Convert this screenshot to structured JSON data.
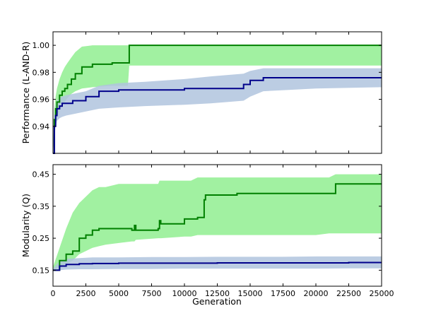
{
  "chart_data": [
    {
      "type": "line",
      "title": "",
      "xlabel": "",
      "ylabel": "Performance (L-AND-R)",
      "xlim": [
        0,
        25000
      ],
      "ylim": [
        0.92,
        1.01
      ],
      "yticks": [
        0.94,
        0.96,
        0.98,
        1.0
      ],
      "ytick_labels": [
        "0.94",
        "0.96",
        "0.98",
        "1.00"
      ],
      "grid": false,
      "legend": "none",
      "series": [
        {
          "color": "#008000",
          "band_color": "#90EE90",
          "x": [
            0,
            100,
            200,
            300,
            500,
            700,
            900,
            1100,
            1400,
            1700,
            2200,
            3000,
            4500,
            5700,
            5800,
            25000
          ],
          "mean": [
            0.92,
            0.945,
            0.953,
            0.958,
            0.963,
            0.966,
            0.968,
            0.971,
            0.975,
            0.979,
            0.984,
            0.986,
            0.987,
            0.987,
            1.0,
            1.0
          ],
          "band_lo": [
            0.92,
            0.935,
            0.942,
            0.947,
            0.952,
            0.955,
            0.958,
            0.961,
            0.964,
            0.966,
            0.968,
            0.969,
            0.97,
            0.97,
            0.985,
            0.985
          ],
          "band_hi": [
            0.92,
            0.953,
            0.962,
            0.968,
            0.975,
            0.98,
            0.984,
            0.987,
            0.991,
            0.995,
            0.999,
            1.0,
            1.0,
            1.0,
            1.0,
            1.0
          ]
        },
        {
          "color": "#00008B",
          "band_color": "#B0C4DE",
          "x": [
            0,
            100,
            200,
            300,
            500,
            700,
            1000,
            1500,
            2500,
            3500,
            5000,
            7000,
            10000,
            12000,
            14500,
            15000,
            16000,
            20000,
            25000
          ],
          "mean": [
            0.92,
            0.94,
            0.948,
            0.953,
            0.955,
            0.957,
            0.957,
            0.959,
            0.962,
            0.966,
            0.967,
            0.967,
            0.968,
            0.968,
            0.971,
            0.974,
            0.976,
            0.976,
            0.976
          ],
          "band_lo": [
            0.92,
            0.932,
            0.94,
            0.944,
            0.946,
            0.947,
            0.948,
            0.949,
            0.951,
            0.953,
            0.954,
            0.955,
            0.956,
            0.957,
            0.959,
            0.962,
            0.966,
            0.968,
            0.969
          ],
          "band_hi": [
            0.92,
            0.948,
            0.955,
            0.959,
            0.961,
            0.962,
            0.963,
            0.964,
            0.966,
            0.97,
            0.972,
            0.973,
            0.975,
            0.977,
            0.979,
            0.981,
            0.983,
            0.983,
            0.983
          ]
        }
      ]
    },
    {
      "type": "line",
      "title": "",
      "xlabel": "Generation",
      "ylabel": "Modularity (Q)",
      "xlim": [
        0,
        25000
      ],
      "ylim": [
        0.1,
        0.48
      ],
      "xticks": [
        0,
        2500,
        5000,
        7500,
        10000,
        12500,
        15000,
        17500,
        20000,
        22500,
        25000
      ],
      "xtick_labels": [
        "0",
        "2500",
        "5000",
        "7500",
        "10000",
        "12500",
        "15000",
        "17500",
        "20000",
        "22500",
        "25000"
      ],
      "yticks": [
        0.15,
        0.25,
        0.35,
        0.45
      ],
      "ytick_labels": [
        "0.15",
        "0.25",
        "0.35",
        "0.45"
      ],
      "grid": false,
      "legend": "none",
      "series": [
        {
          "color": "#008000",
          "band_color": "#90EE90",
          "x": [
            0,
            500,
            1000,
            1500,
            2000,
            2500,
            3000,
            3500,
            4000,
            5000,
            6000,
            6200,
            6300,
            8000,
            8100,
            8200,
            10000,
            10500,
            11000,
            11500,
            11600,
            12000,
            14000,
            16000,
            18000,
            19000,
            20000,
            21000,
            21500,
            23000,
            25000
          ],
          "mean": [
            0.15,
            0.18,
            0.2,
            0.21,
            0.25,
            0.26,
            0.275,
            0.28,
            0.28,
            0.28,
            0.275,
            0.29,
            0.275,
            0.28,
            0.305,
            0.295,
            0.31,
            0.31,
            0.315,
            0.37,
            0.385,
            0.385,
            0.39,
            0.39,
            0.39,
            0.39,
            0.39,
            0.39,
            0.42,
            0.42,
            0.42
          ],
          "band_lo": [
            0.15,
            0.16,
            0.17,
            0.18,
            0.2,
            0.21,
            0.22,
            0.225,
            0.23,
            0.235,
            0.24,
            0.24,
            0.245,
            0.25,
            0.25,
            0.25,
            0.255,
            0.255,
            0.26,
            0.26,
            0.26,
            0.26,
            0.26,
            0.26,
            0.26,
            0.26,
            0.26,
            0.265,
            0.265,
            0.265,
            0.265
          ],
          "band_hi": [
            0.16,
            0.22,
            0.28,
            0.33,
            0.36,
            0.38,
            0.4,
            0.41,
            0.41,
            0.42,
            0.42,
            0.42,
            0.42,
            0.42,
            0.43,
            0.43,
            0.43,
            0.43,
            0.44,
            0.44,
            0.44,
            0.44,
            0.44,
            0.44,
            0.44,
            0.44,
            0.44,
            0.44,
            0.45,
            0.45,
            0.45
          ]
        },
        {
          "color": "#00008B",
          "band_color": "#B0C4DE",
          "x": [
            0,
            500,
            1000,
            2000,
            3000,
            5000,
            7500,
            10000,
            12500,
            15000,
            17500,
            20000,
            22500,
            25000
          ],
          "mean": [
            0.15,
            0.163,
            0.168,
            0.17,
            0.171,
            0.172,
            0.172,
            0.172,
            0.173,
            0.173,
            0.173,
            0.173,
            0.174,
            0.174
          ],
          "band_lo": [
            0.15,
            0.15,
            0.152,
            0.153,
            0.153,
            0.154,
            0.154,
            0.155,
            0.155,
            0.155,
            0.155,
            0.155,
            0.156,
            0.156
          ],
          "band_hi": [
            0.155,
            0.178,
            0.185,
            0.188,
            0.19,
            0.19,
            0.191,
            0.191,
            0.192,
            0.192,
            0.192,
            0.193,
            0.193,
            0.193
          ]
        }
      ]
    }
  ]
}
